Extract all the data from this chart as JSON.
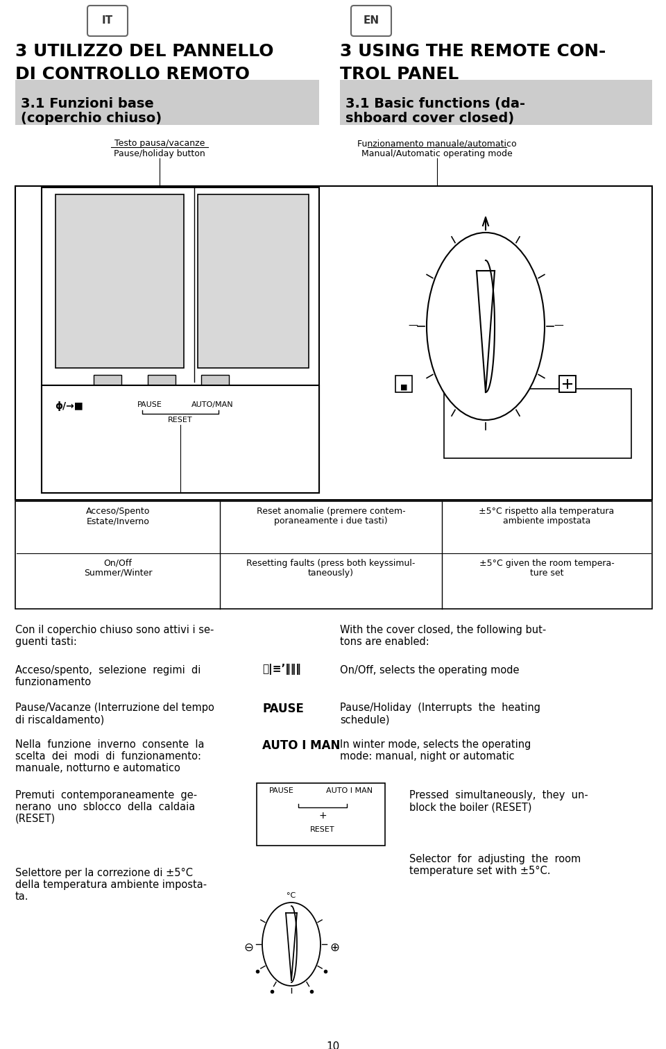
{
  "bg_color": "#ffffff",
  "it_badge": "IT",
  "en_badge": "EN",
  "title_it_1": "3 UTILIZZO DEL PANNELLO",
  "title_it_2": "DI CONTROLLO REMOTO",
  "title_en_1": "3 USING THE REMOTE CON-",
  "title_en_2": "TROL PANEL",
  "section_it_1": "3.1 Funzioni base",
  "section_it_2": "(coperchio chiuso)",
  "section_en_1": "3.1 Basic functions (da-",
  "section_en_2": "shboard cover closed)",
  "label_pause_it": "Testo pausa/vacanze",
  "label_pause_en": "Pause/holiday button",
  "label_auto_it": "Funzionamento manuale/automatico",
  "label_auto_en": "Manual/Automatic operating mode",
  "col1_it_1": "Acceso/Spento",
  "col1_it_2": "Estate/Inverno",
  "col1_en_1": "On/Off",
  "col1_en_2": "Summer/Winter",
  "col2_it_1": "Reset anomalie (premere contem-",
  "col2_it_2": "poraneamente i due tasti)",
  "col2_en_1": "Resetting faults (press both keyssimul-",
  "col2_en_2": "taneously)",
  "col3_it_1": "±5°C rispetto alla temperatura",
  "col3_it_2": "ambiente impostata",
  "col3_en_1": "±5°C given the room tempera-",
  "col3_en_2": "ture set",
  "para1_it_1": "Con il coperchio chiuso sono attivi i se-",
  "para1_it_2": "guenti tasti:",
  "para1_en_1": "With the cover closed, the following but-",
  "para1_en_2": "tons are enabled:",
  "para2_it_1": "Acceso/spento,  selezione  regimi  di",
  "para2_it_2": "funzionamento",
  "para2_en": "On/Off, selects the operating mode",
  "para3_it_1": "Pause/Vacanze (Interruzione del tempo",
  "para3_it_2": "di riscaldamento)",
  "para3_bold": "PAUSE",
  "para3_en_1": "Pause/Holiday  (Interrupts  the  heating",
  "para3_en_2": "schedule)",
  "para4_it_1": "Nella  funzione  inverno  consente  la",
  "para4_it_2": "scelta  dei  modi  di  funzionamento:",
  "para4_it_3": "manuale, notturno e automatico",
  "para4_bold": "AUTO I MAN",
  "para4_en_1": "In winter mode, selects the operating",
  "para4_en_2": "mode: manual, night or automatic",
  "para5_it_1": "Premuti  contemporaneamente  ge-",
  "para5_it_2": "nerano  uno  sblocco  della  caldaia",
  "para5_it_3": "(RESET)",
  "para5_en_1": "Pressed  simultaneously,  they  un-",
  "para5_en_2": "block the boiler (RESET)",
  "para6_it_1": "Selettore per la correzione di ±5°C",
  "para6_it_2": "della temperatura ambiente imposta-",
  "para6_it_3": "ta.",
  "para6_en_1": "Selector  for  adjusting  the  room",
  "para6_en_2": "temperature set with ±5°C.",
  "page_num": "10"
}
